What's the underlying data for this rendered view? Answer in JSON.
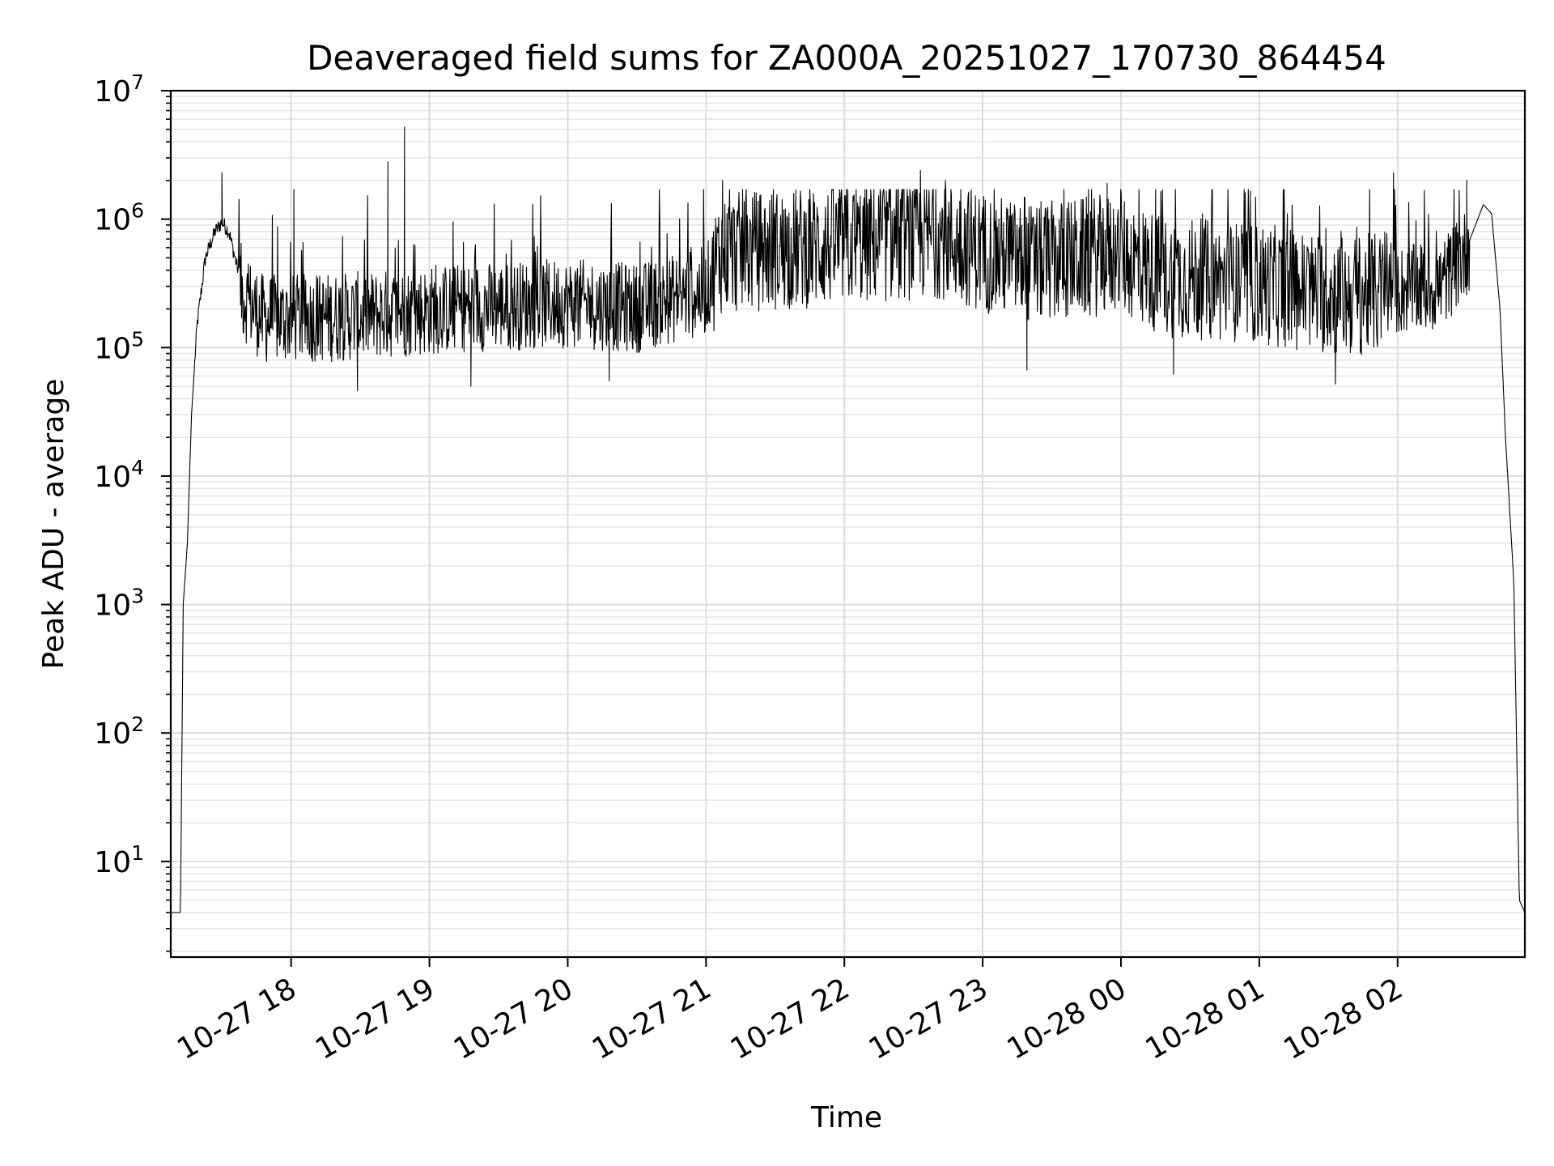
{
  "chart_data": {
    "type": "line",
    "title": "Deaveraged field sums for ZA000A_20251027_170730_864454",
    "xlabel": "Time",
    "ylabel": "Peak ADU - average",
    "yscale": "log",
    "ylim": [
      1.8,
      10000000
    ],
    "xlim_hours": [
      17.13,
      26.92
    ],
    "x_ticks": [
      {
        "label": "10-27 18",
        "hour": 18
      },
      {
        "label": "10-27 19",
        "hour": 19
      },
      {
        "label": "10-27 20",
        "hour": 20
      },
      {
        "label": "10-27 21",
        "hour": 21
      },
      {
        "label": "10-27 22",
        "hour": 22
      },
      {
        "label": "10-27 23",
        "hour": 23
      },
      {
        "label": "10-28 00",
        "hour": 24
      },
      {
        "label": "10-28 01",
        "hour": 25
      },
      {
        "label": "10-28 02",
        "hour": 26
      }
    ],
    "y_ticks": [
      {
        "base": "10",
        "exp": "1",
        "value": 10
      },
      {
        "base": "10",
        "exp": "2",
        "value": 100
      },
      {
        "base": "10",
        "exp": "3",
        "value": 1000
      },
      {
        "base": "10",
        "exp": "4",
        "value": 10000
      },
      {
        "base": "10",
        "exp": "5",
        "value": 100000
      },
      {
        "base": "10",
        "exp": "6",
        "value": 1000000
      },
      {
        "base": "10",
        "exp": "7",
        "value": 10000000
      }
    ],
    "grid": true,
    "series": [
      {
        "name": "Peak ADU - average",
        "color": "#000000",
        "anchors": [
          {
            "t": 17.13,
            "v": 4
          },
          {
            "t": 17.2,
            "v": 4
          },
          {
            "t": 17.22,
            "v": 1000
          },
          {
            "t": 17.25,
            "v": 3000
          },
          {
            "t": 17.28,
            "v": 30000
          },
          {
            "t": 17.32,
            "v": 150000
          },
          {
            "t": 17.38,
            "v": 500000
          },
          {
            "t": 17.45,
            "v": 800000
          },
          {
            "t": 17.5,
            "v": 950000
          },
          {
            "t": 17.55,
            "v": 800000
          },
          {
            "t": 17.65,
            "v": 280000
          },
          {
            "t": 17.8,
            "v": 180000
          },
          {
            "t": 18.5,
            "v": 190000
          },
          {
            "t": 19.2,
            "v": 220000
          },
          {
            "t": 20.0,
            "v": 240000
          },
          {
            "t": 20.5,
            "v": 220000
          },
          {
            "t": 21.0,
            "v": 300000
          },
          {
            "t": 21.1,
            "v": 600000
          },
          {
            "t": 22.0,
            "v": 700000
          },
          {
            "t": 22.7,
            "v": 800000
          },
          {
            "t": 23.3,
            "v": 500000
          },
          {
            "t": 24.0,
            "v": 600000
          },
          {
            "t": 24.3,
            "v": 400000
          },
          {
            "t": 25.0,
            "v": 350000
          },
          {
            "t": 25.6,
            "v": 280000
          },
          {
            "t": 26.3,
            "v": 320000
          },
          {
            "t": 26.5,
            "v": 600000
          },
          {
            "t": 26.62,
            "v": 1300000
          },
          {
            "t": 26.68,
            "v": 1100000
          },
          {
            "t": 26.74,
            "v": 200000
          },
          {
            "t": 26.78,
            "v": 20000
          },
          {
            "t": 26.84,
            "v": 1500
          },
          {
            "t": 26.88,
            "v": 5
          },
          {
            "t": 26.92,
            "v": 4
          }
        ],
        "spikes": [
          {
            "t": 17.5,
            "v": 2300000
          },
          {
            "t": 18.02,
            "v": 1700000
          },
          {
            "t": 18.7,
            "v": 2800000
          },
          {
            "t": 18.82,
            "v": 5200000
          },
          {
            "t": 18.48,
            "v": 46000
          },
          {
            "t": 19.3,
            "v": 50000
          },
          {
            "t": 20.3,
            "v": 55000
          },
          {
            "t": 21.12,
            "v": 2000000
          },
          {
            "t": 22.55,
            "v": 2400000
          },
          {
            "t": 22.73,
            "v": 2000000
          },
          {
            "t": 23.32,
            "v": 67000
          },
          {
            "t": 23.9,
            "v": 1900000
          },
          {
            "t": 24.38,
            "v": 62000
          },
          {
            "t": 25.55,
            "v": 52000
          },
          {
            "t": 25.97,
            "v": 2300000
          },
          {
            "t": 26.5,
            "v": 2000000
          }
        ]
      }
    ]
  }
}
